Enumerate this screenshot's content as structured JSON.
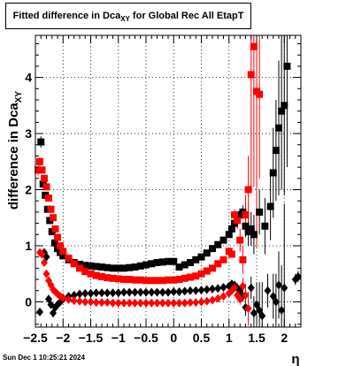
{
  "title": {
    "main": "Fitted difference in Dca",
    "sub": "XY",
    "rest": " for Global Rec All EtapT"
  },
  "timestamp": "Sun Dec  1 10:25:21 2024",
  "chart_data": {
    "type": "scatter",
    "xlabel": "η",
    "ylabel": {
      "main": "difference in Dca",
      "sub": "XY"
    },
    "xlim": [
      -2.5,
      2.3
    ],
    "ylim": [
      -0.45,
      4.75
    ],
    "x_ticks": [
      -2.5,
      -2,
      -1.5,
      -1,
      -0.5,
      0,
      0.5,
      1,
      1.5,
      2
    ],
    "x_tick_labels": [
      "−2.5",
      "−2",
      "−1.5",
      "−1",
      "−0.5",
      "0",
      "0.5",
      "1",
      "1.5",
      "2"
    ],
    "y_ticks": [
      0,
      1,
      2,
      3,
      4
    ],
    "y_tick_labels": [
      "0",
      "1",
      "2",
      "3",
      "4"
    ],
    "grid": true,
    "series": [
      {
        "marker": "square",
        "color": "#000000",
        "x": [
          -2.4,
          -2.36,
          -2.32,
          -2.28,
          -2.24,
          -2.2,
          -2.15,
          -2.1,
          -2.05,
          -2.0,
          -1.9,
          -1.8,
          -1.7,
          -1.6,
          -1.5,
          -1.4,
          -1.3,
          -1.2,
          -1.1,
          -1.0,
          -0.9,
          -0.8,
          -0.7,
          -0.6,
          -0.5,
          -0.4,
          -0.3,
          -0.2,
          -0.1,
          0.0,
          0.1,
          0.2,
          0.3,
          0.4,
          0.5,
          0.6,
          0.7,
          0.8,
          0.9,
          1.0,
          1.05,
          1.1,
          1.15,
          1.2,
          1.25,
          1.3,
          1.35,
          1.4,
          1.45,
          1.55,
          1.65,
          1.75,
          1.8,
          1.85,
          1.9,
          1.95,
          2.0,
          2.05
        ],
        "y": [
          2.85,
          2.1,
          1.9,
          1.65,
          1.45,
          1.25,
          1.05,
          0.95,
          0.88,
          0.82,
          0.75,
          0.7,
          0.67,
          0.65,
          0.64,
          0.63,
          0.62,
          0.61,
          0.6,
          0.6,
          0.6,
          0.61,
          0.62,
          0.64,
          0.66,
          0.68,
          0.7,
          0.71,
          0.72,
          0.72,
          0.62,
          0.66,
          0.7,
          0.75,
          0.8,
          0.87,
          0.95,
          1.02,
          1.1,
          1.2,
          1.3,
          1.4,
          1.5,
          1.55,
          1.6,
          1.35,
          1.25,
          1.3,
          1.2,
          1.6,
          1.35,
          1.7,
          2.3,
          2.7,
          3.1,
          3.4,
          3.5,
          4.2
        ],
        "yerr": [
          0.1,
          0.06,
          0.05,
          0.04,
          0.04,
          0.03,
          0.03,
          0.02,
          0.02,
          0.02,
          0.02,
          0.02,
          0.02,
          0.02,
          0.02,
          0.02,
          0.02,
          0.02,
          0.02,
          0.02,
          0.02,
          0.02,
          0.02,
          0.02,
          0.02,
          0.02,
          0.02,
          0.02,
          0.02,
          0.02,
          0.03,
          0.03,
          0.03,
          0.03,
          0.03,
          0.03,
          0.04,
          0.04,
          0.04,
          0.05,
          0.06,
          0.07,
          0.08,
          0.1,
          0.12,
          0.2,
          0.25,
          0.3,
          0.35,
          0.4,
          0.5,
          0.6,
          0.8,
          0.9,
          1.2,
          1.4,
          1.6,
          1.8
        ]
      },
      {
        "marker": "diamond",
        "color": "#000000",
        "x": [
          -2.42,
          -2.38,
          -2.34,
          -2.3,
          -2.26,
          -2.22,
          -2.18,
          -2.14,
          -2.1,
          -2.05,
          -2.0,
          -1.9,
          -1.8,
          -1.7,
          -1.6,
          -1.5,
          -1.4,
          -1.3,
          -1.2,
          -1.1,
          -1.0,
          -0.9,
          -0.8,
          -0.7,
          -0.6,
          -0.5,
          -0.4,
          -0.3,
          -0.2,
          -0.1,
          0.0,
          0.1,
          0.2,
          0.3,
          0.4,
          0.5,
          0.6,
          0.7,
          0.8,
          0.9,
          1.0,
          1.05,
          1.1,
          1.15,
          1.2,
          1.25,
          1.3,
          1.4,
          1.45,
          1.5,
          1.55,
          1.6,
          1.7,
          1.8,
          1.85,
          1.9,
          1.95,
          2.0,
          2.2,
          2.25
        ],
        "y": [
          -0.18,
          0.85,
          0.88,
          0.8,
          0.05,
          -0.05,
          -0.2,
          -0.1,
          -0.05,
          0.0,
          0.05,
          0.1,
          0.12,
          0.14,
          0.15,
          0.15,
          0.16,
          0.16,
          0.16,
          0.16,
          0.16,
          0.17,
          0.17,
          0.17,
          0.17,
          0.17,
          0.17,
          0.17,
          0.17,
          0.17,
          0.18,
          0.18,
          0.19,
          0.2,
          0.2,
          0.21,
          0.22,
          0.23,
          0.24,
          0.26,
          0.28,
          0.32,
          0.3,
          0.25,
          0.2,
          0.1,
          -0.1,
          0.25,
          -0.2,
          -0.05,
          -0.15,
          -0.25,
          0.2,
          0.1,
          0.0,
          0.3,
          -0.15,
          0.25,
          0.4,
          0.45
        ],
        "yerr": [
          0.02,
          0.05,
          0.05,
          0.04,
          0.03,
          0.03,
          0.03,
          0.02,
          0.02,
          0.02,
          0.02,
          0.02,
          0.02,
          0.02,
          0.02,
          0.02,
          0.02,
          0.02,
          0.02,
          0.02,
          0.02,
          0.02,
          0.02,
          0.02,
          0.02,
          0.02,
          0.02,
          0.02,
          0.02,
          0.02,
          0.02,
          0.02,
          0.02,
          0.02,
          0.02,
          0.02,
          0.02,
          0.02,
          0.02,
          0.03,
          0.03,
          0.04,
          0.05,
          0.06,
          0.08,
          0.1,
          0.15,
          0.2,
          0.3,
          0.4,
          0.5,
          0.6,
          0.3,
          0.4,
          0.5,
          0.6,
          0.8,
          1.5,
          0.1,
          0.1
        ]
      },
      {
        "marker": "square",
        "color": "#ff0000",
        "x": [
          -2.45,
          -2.42,
          -2.38,
          -2.34,
          -2.3,
          -2.26,
          -2.22,
          -2.18,
          -2.14,
          -2.1,
          -2.05,
          -2.0,
          -1.9,
          -1.8,
          -1.7,
          -1.6,
          -1.5,
          -1.4,
          -1.3,
          -1.2,
          -1.1,
          -1.0,
          -0.9,
          -0.8,
          -0.7,
          -0.6,
          -0.5,
          -0.4,
          -0.3,
          -0.2,
          -0.1,
          0.0,
          0.1,
          0.2,
          0.3,
          0.4,
          0.5,
          0.6,
          0.7,
          0.8,
          0.9,
          1.0,
          1.05,
          1.1,
          1.15,
          1.2,
          1.25,
          1.3,
          1.35,
          1.4,
          1.45,
          1.5,
          1.55
        ],
        "y": [
          2.35,
          2.5,
          2.35,
          2.2,
          2.05,
          1.85,
          1.65,
          1.5,
          1.3,
          1.15,
          1.0,
          0.9,
          0.78,
          0.68,
          0.6,
          0.54,
          0.5,
          0.47,
          0.45,
          0.43,
          0.42,
          0.41,
          0.4,
          0.4,
          0.39,
          0.39,
          0.38,
          0.38,
          0.38,
          0.38,
          0.39,
          0.39,
          0.4,
          0.42,
          0.44,
          0.46,
          0.5,
          0.55,
          0.6,
          0.68,
          0.75,
          0.9,
          0.85,
          1.55,
          1.45,
          1.1,
          0.75,
          1.55,
          2.0,
          4.05,
          4.55,
          3.75,
          3.7
        ],
        "yerr": [
          0.1,
          0.08,
          0.06,
          0.05,
          0.04,
          0.04,
          0.03,
          0.03,
          0.03,
          0.02,
          0.02,
          0.02,
          0.02,
          0.02,
          0.02,
          0.02,
          0.02,
          0.02,
          0.02,
          0.02,
          0.02,
          0.02,
          0.02,
          0.02,
          0.02,
          0.02,
          0.02,
          0.02,
          0.02,
          0.02,
          0.02,
          0.02,
          0.02,
          0.02,
          0.02,
          0.02,
          0.02,
          0.03,
          0.03,
          0.03,
          0.04,
          0.05,
          0.06,
          0.1,
          0.15,
          0.2,
          0.25,
          0.35,
          0.6,
          2.0,
          2.5,
          2.8,
          1.5
        ]
      },
      {
        "marker": "diamond",
        "color": "#ff0000",
        "x": [
          -2.42,
          -2.38,
          -2.34,
          -2.3,
          -2.26,
          -2.22,
          -2.18,
          -2.14,
          -2.1,
          -2.05,
          -2.0,
          -1.9,
          -1.8,
          -1.7,
          -1.6,
          -1.5,
          -1.4,
          -1.3,
          -1.2,
          -1.1,
          -1.0,
          -0.9,
          -0.8,
          -0.7,
          -0.6,
          -0.5,
          -0.4,
          -0.3,
          -0.2,
          -0.1,
          0.0,
          0.1,
          0.2,
          0.3,
          0.4,
          0.5,
          0.6,
          0.7,
          0.8,
          0.9,
          1.0,
          1.05,
          1.1,
          1.15,
          1.2,
          1.25,
          1.3,
          1.35
        ],
        "y": [
          0.88,
          0.85,
          0.7,
          0.5,
          0.38,
          0.3,
          0.22,
          0.18,
          0.14,
          0.1,
          0.07,
          0.04,
          0.02,
          0.01,
          0.0,
          0.0,
          -0.01,
          -0.01,
          -0.01,
          -0.02,
          -0.02,
          -0.02,
          -0.02,
          -0.02,
          -0.02,
          -0.02,
          -0.02,
          -0.02,
          -0.02,
          -0.02,
          -0.02,
          -0.02,
          -0.02,
          -0.01,
          -0.01,
          0.0,
          0.01,
          0.03,
          0.06,
          0.1,
          0.15,
          0.2,
          0.25,
          0.12,
          0.05,
          0.28,
          0.12,
          -0.12
        ],
        "yerr": [
          0.05,
          0.05,
          0.04,
          0.03,
          0.03,
          0.02,
          0.02,
          0.02,
          0.02,
          0.02,
          0.02,
          0.02,
          0.02,
          0.02,
          0.02,
          0.02,
          0.02,
          0.02,
          0.02,
          0.02,
          0.02,
          0.02,
          0.02,
          0.02,
          0.02,
          0.02,
          0.02,
          0.02,
          0.02,
          0.02,
          0.02,
          0.02,
          0.02,
          0.02,
          0.02,
          0.02,
          0.02,
          0.02,
          0.03,
          0.03,
          0.04,
          0.05,
          0.06,
          0.08,
          0.1,
          0.15,
          0.2,
          0.3
        ]
      }
    ]
  }
}
